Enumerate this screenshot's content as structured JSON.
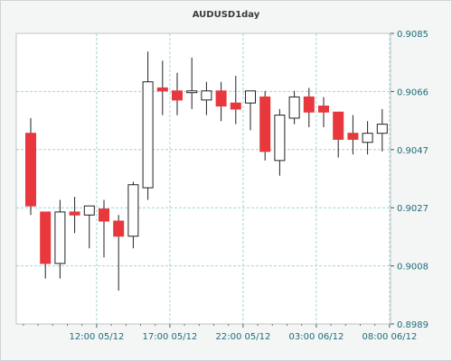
{
  "chart_data": {
    "type": "candlestick",
    "title": "AUDUSD1day",
    "ylim": [
      0.8989,
      0.9085
    ],
    "yticks": [
      "0.9085",
      "0.9066",
      "0.9047",
      "0.9027",
      "0.9008",
      "0.8989"
    ],
    "xticks": [
      {
        "label": "12:00 05/12",
        "index": 4.5
      },
      {
        "label": "17:00 05/12",
        "index": 9.5
      },
      {
        "label": "22:00 05/12",
        "index": 14.5
      },
      {
        "label": "03:00 06/12",
        "index": 19.5
      },
      {
        "label": "08:00 06/12",
        "index": 24.5
      }
    ],
    "colors": {
      "bull": "#ffffff",
      "bear": "#e8383d",
      "wick": "#222222",
      "grid": "#9fd6d6"
    },
    "candles": [
      {
        "o": 0.9052,
        "h": 0.9057,
        "l": 0.9025,
        "c": 0.9028
      },
      {
        "o": 0.9026,
        "h": 0.9026,
        "l": 0.9004,
        "c": 0.9009
      },
      {
        "o": 0.9009,
        "h": 0.903,
        "l": 0.9004,
        "c": 0.9026
      },
      {
        "o": 0.9026,
        "h": 0.9031,
        "l": 0.9019,
        "c": 0.9025
      },
      {
        "o": 0.9025,
        "h": 0.9028,
        "l": 0.9014,
        "c": 0.9028
      },
      {
        "o": 0.9027,
        "h": 0.903,
        "l": 0.9011,
        "c": 0.9023
      },
      {
        "o": 0.9023,
        "h": 0.9025,
        "l": 0.9,
        "c": 0.9018
      },
      {
        "o": 0.9018,
        "h": 0.9036,
        "l": 0.9014,
        "c": 0.9035
      },
      {
        "o": 0.9034,
        "h": 0.9079,
        "l": 0.903,
        "c": 0.9069
      },
      {
        "o": 0.9067,
        "h": 0.9076,
        "l": 0.9058,
        "c": 0.9066
      },
      {
        "o": 0.9066,
        "h": 0.9072,
        "l": 0.9058,
        "c": 0.9063
      },
      {
        "o": 0.9066,
        "h": 0.9077,
        "l": 0.906,
        "c": 0.9066
      },
      {
        "o": 0.9063,
        "h": 0.9069,
        "l": 0.9058,
        "c": 0.9066
      },
      {
        "o": 0.9066,
        "h": 0.9069,
        "l": 0.9056,
        "c": 0.9061
      },
      {
        "o": 0.9062,
        "h": 0.9071,
        "l": 0.9055,
        "c": 0.906
      },
      {
        "o": 0.9062,
        "h": 0.9066,
        "l": 0.9053,
        "c": 0.9066
      },
      {
        "o": 0.9064,
        "h": 0.9066,
        "l": 0.9043,
        "c": 0.9046
      },
      {
        "o": 0.9043,
        "h": 0.906,
        "l": 0.9038,
        "c": 0.9058
      },
      {
        "o": 0.9057,
        "h": 0.9066,
        "l": 0.9055,
        "c": 0.9064
      },
      {
        "o": 0.9064,
        "h": 0.9067,
        "l": 0.9054,
        "c": 0.9059
      },
      {
        "o": 0.9061,
        "h": 0.9064,
        "l": 0.9054,
        "c": 0.9059
      },
      {
        "o": 0.9059,
        "h": 0.9059,
        "l": 0.9044,
        "c": 0.905
      },
      {
        "o": 0.9052,
        "h": 0.9058,
        "l": 0.9045,
        "c": 0.905
      },
      {
        "o": 0.9049,
        "h": 0.9056,
        "l": 0.9045,
        "c": 0.9052
      },
      {
        "o": 0.9052,
        "h": 0.906,
        "l": 0.9046,
        "c": 0.9055
      }
    ]
  }
}
